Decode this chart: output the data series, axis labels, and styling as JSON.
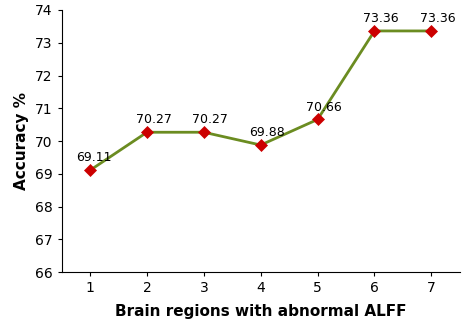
{
  "x": [
    1,
    2,
    3,
    4,
    5,
    6,
    7
  ],
  "y": [
    69.11,
    70.27,
    70.27,
    69.88,
    70.66,
    73.36,
    73.36
  ],
  "labels": [
    "69.11",
    "70.27",
    "70.27",
    "69.88",
    "70.66",
    "73.36",
    "73.36"
  ],
  "line_color": "#6b8c21",
  "marker_color": "#cc0000",
  "marker_style": "D",
  "marker_size": 6,
  "line_width": 2.0,
  "xlabel": "Brain regions with abnormal ALFF",
  "ylabel": "Accuracy %",
  "xlim": [
    0.5,
    7.5
  ],
  "ylim": [
    66,
    74
  ],
  "yticks": [
    66,
    67,
    68,
    69,
    70,
    71,
    72,
    73,
    74
  ],
  "xticks": [
    1,
    2,
    3,
    4,
    5,
    6,
    7
  ],
  "xlabel_fontsize": 11,
  "ylabel_fontsize": 11,
  "tick_fontsize": 10,
  "annotation_fontsize": 9,
  "background_color": "#ffffff",
  "label_offsets_x": [
    -0.25,
    -0.2,
    -0.2,
    -0.2,
    -0.2,
    -0.2,
    -0.2
  ],
  "label_offsets_y": [
    0.18,
    0.18,
    0.18,
    0.18,
    0.18,
    0.18,
    0.18
  ]
}
